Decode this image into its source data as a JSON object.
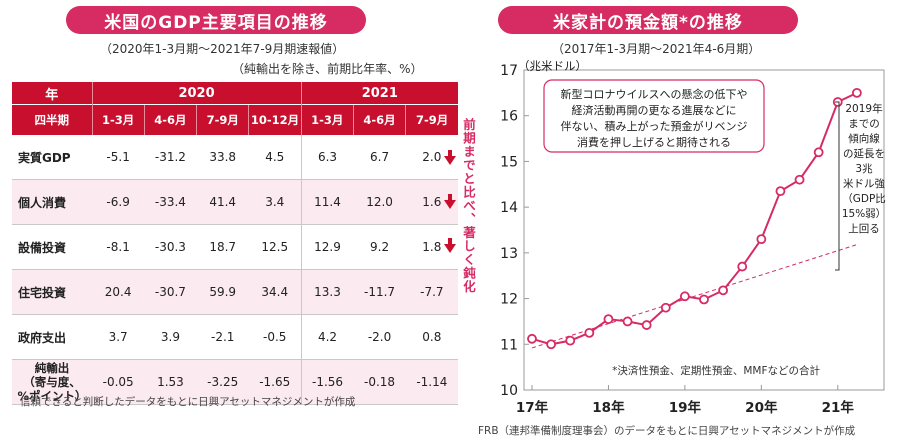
{
  "left": {
    "title": "米国のGDP主要項目の推移",
    "subtitle1": "（2020年1-3月期～2021年7-9月期速報値）",
    "subtitle2": "（純輸出を除き、前期比年率、%）",
    "header_year": "年",
    "year_2020": "2020",
    "year_2021": "2021",
    "header_quarter": "四半期",
    "quarters": [
      "1-3月",
      "4-6月",
      "7-9月",
      "10-12月",
      "1-3月",
      "4-6月",
      "7-9月"
    ],
    "rows": [
      {
        "label": "実質GDP",
        "values": [
          "-5.1",
          "-31.2",
          "33.8",
          "4.5",
          "6.3",
          "6.7",
          "2.0"
        ]
      },
      {
        "label": "個人消費",
        "values": [
          "-6.9",
          "-33.4",
          "41.4",
          "3.4",
          "11.4",
          "12.0",
          "1.6"
        ]
      },
      {
        "label": "設備投資",
        "values": [
          "-8.1",
          "-30.3",
          "18.7",
          "12.5",
          "12.9",
          "9.2",
          "1.8"
        ]
      },
      {
        "label": "住宅投資",
        "values": [
          "20.4",
          "-30.7",
          "59.9",
          "34.4",
          "13.3",
          "-11.7",
          "-7.7"
        ]
      },
      {
        "label": "政府支出",
        "values": [
          "3.7",
          "3.9",
          "-2.1",
          "-0.5",
          "4.2",
          "-2.0",
          "0.8"
        ]
      }
    ],
    "net_exports": {
      "label1": "純輸出",
      "label2": "（寄与度、",
      "label3": "%ポイント）",
      "values": [
        "-0.05",
        "1.53",
        "-3.25",
        "-1.65",
        "-1.56",
        "-0.18",
        "-1.14"
      ]
    },
    "vertical_note": "前期までと比べ、著しく鈍化",
    "source": "信頼できると判断したデータをもとに日興アセットマネジメントが作成",
    "colors": {
      "header": "#c8102e",
      "shade": "#fbeaef"
    }
  },
  "right": {
    "title": "米家計の預金額*の推移",
    "subtitle": "（2017年1-3月期～2021年4-6月期）",
    "callout": [
      "新型コロナウイルスへの懸念の低下や",
      "経済活動再開の更なる進展などに",
      "伴ない、積み上がった預金がリベンジ",
      "消費を押し上げると期待される"
    ],
    "side_note": [
      "2019年",
      "までの",
      "傾向線",
      "の延長を",
      "3兆",
      "米ドル強",
      "（GDP比",
      "15%弱）",
      "上回る"
    ],
    "footnote": "*決済性預金、定期性預金、MMFなどの合計",
    "source": "FRB（連邦準備制度理事会）のデータをもとに日興アセットマネジメントが作成",
    "colors": {
      "line": "#d62b63",
      "trend": "#d62b63"
    }
  },
  "chart_data": {
    "type": "line",
    "ylabel": "（兆米ドル）",
    "ylim": [
      10,
      17
    ],
    "yticks": [
      "10",
      "11",
      "12",
      "13",
      "14",
      "15",
      "16",
      "17"
    ],
    "xticks": [
      "17年",
      "18年",
      "19年",
      "20年",
      "21年"
    ],
    "xlim": [
      0,
      18
    ],
    "x": [
      0,
      1,
      2,
      3,
      4,
      5,
      6,
      7,
      8,
      9,
      10,
      11,
      12,
      13,
      14,
      15,
      16,
      17
    ],
    "values": [
      11.12,
      11.0,
      11.08,
      11.25,
      11.55,
      11.5,
      11.42,
      11.8,
      12.05,
      11.98,
      12.18,
      12.7,
      13.3,
      14.35,
      14.6,
      15.2,
      16.3,
      16.5
    ],
    "trend": {
      "x": [
        0,
        17
      ],
      "values": [
        10.92,
        13.18
      ]
    },
    "grid": false
  }
}
